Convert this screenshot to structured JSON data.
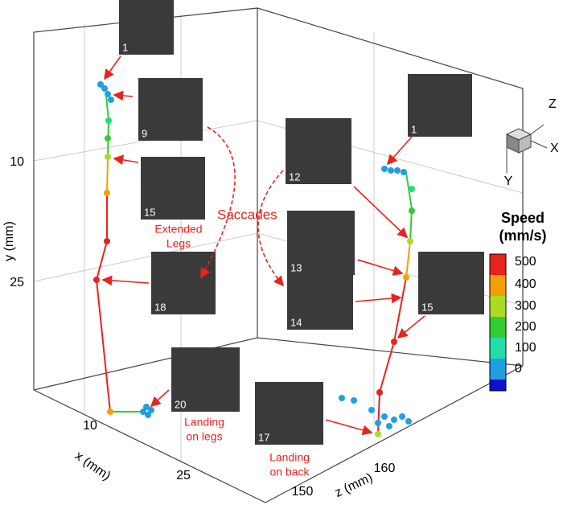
{
  "axes": {
    "x": {
      "label": "x (mm)",
      "ticks": [
        "10",
        "25"
      ]
    },
    "y": {
      "label": "y (mm)",
      "ticks": [
        "10",
        "25"
      ]
    },
    "z": {
      "label": "z (mm)",
      "ticks": [
        "150",
        "160"
      ]
    }
  },
  "insets": [
    {
      "label": "1"
    },
    {
      "label": "9"
    },
    {
      "label": "15"
    },
    {
      "label": "18"
    },
    {
      "label": "20"
    },
    {
      "label": "1"
    },
    {
      "label": "12"
    },
    {
      "label": "13"
    },
    {
      "label": "15"
    },
    {
      "label": "14"
    },
    {
      "label": "17"
    }
  ],
  "annotations": {
    "saccades": "Saccades",
    "extended": [
      "Extended",
      "Legs"
    ],
    "landing_legs": [
      "Landing",
      "on legs"
    ],
    "landing_back": [
      "Landing",
      "on back"
    ]
  },
  "colorbar": {
    "title": [
      "Speed",
      "(mm/s)"
    ],
    "ticks": [
      "500",
      "400",
      "300",
      "200",
      "100",
      "0"
    ]
  },
  "orientation": {
    "labels": [
      "Z",
      "X",
      "Y"
    ]
  }
}
